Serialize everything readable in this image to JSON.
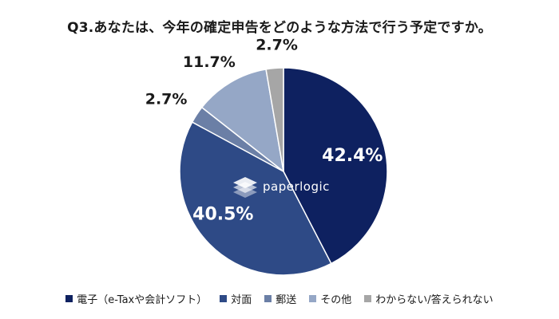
{
  "chart_data": {
    "type": "pie",
    "title": "Q3.あなたは、今年の確定申告をどのような方法で行う予定ですか。",
    "categories": [
      "電子（e-Taxや会計ソフト）",
      "対面",
      "郵送",
      "その他",
      "わからない/答えられない"
    ],
    "values": [
      42.4,
      40.5,
      2.7,
      11.7,
      2.7
    ],
    "labels": [
      "42.4%",
      "40.5%",
      "2.7%",
      "11.7%",
      "2.7%"
    ],
    "colors": [
      "#0e2160",
      "#2e4a86",
      "#6b7fa6",
      "#95a7c6",
      "#a6a6a6"
    ],
    "start_angle_deg": 0,
    "direction": "clockwise",
    "legend_position": "bottom"
  },
  "watermark": {
    "text": "paperlogic"
  }
}
